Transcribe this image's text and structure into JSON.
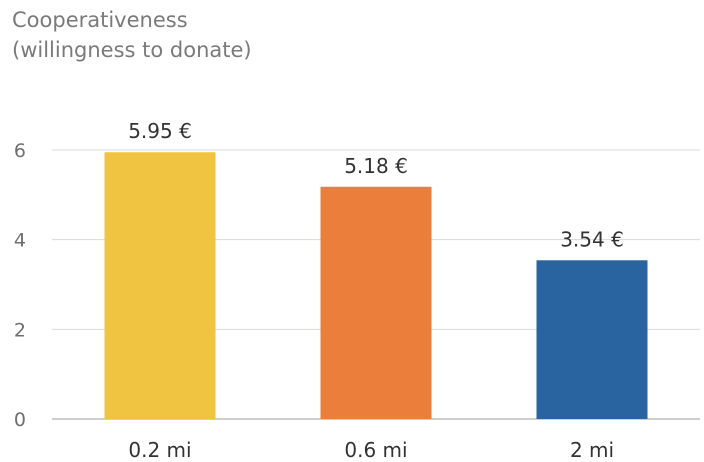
{
  "title_lines": [
    "Cooperativeness",
    "(willingness to donate)"
  ],
  "chart_data": {
    "type": "bar",
    "title": "Cooperativeness (willingness to donate)",
    "categories": [
      "0.2 mi",
      "0.6 mi",
      "2 mi"
    ],
    "values": [
      5.95,
      5.18,
      3.54
    ],
    "data_labels": [
      "5.95 €",
      "5.18 €",
      "3.54 €"
    ],
    "colors": [
      "#F0C340",
      "#EB7E3B",
      "#2A64A0"
    ],
    "ylim": [
      0,
      6
    ],
    "yticks": [
      0,
      2,
      4,
      6
    ],
    "grid": true,
    "legend": "none"
  }
}
